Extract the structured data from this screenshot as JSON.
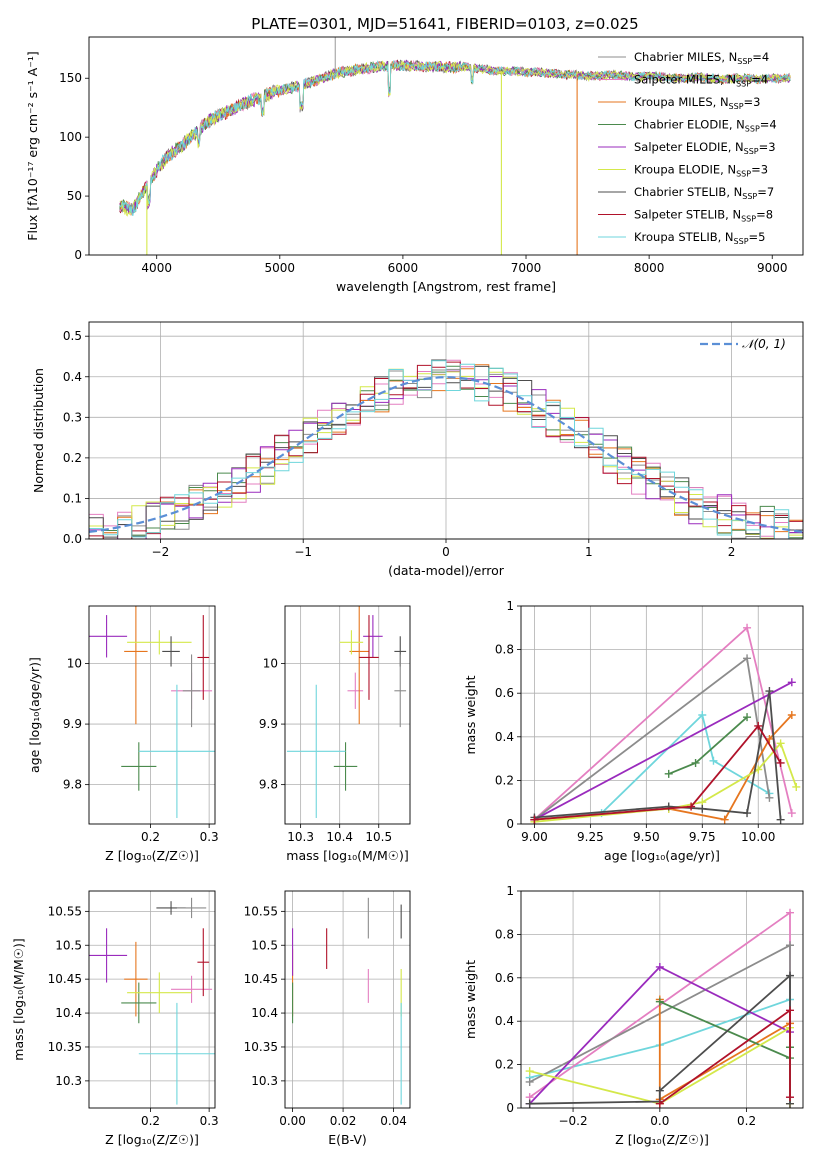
{
  "figure": {
    "title": "PLATE=0301, MJD=51641, FIBERID=0103, z=0.025",
    "legend": [
      {
        "model": "Chabrier MILES",
        "n": "4",
        "color": "#8c8c8c"
      },
      {
        "model": "Salpeter MILES",
        "n": "4",
        "color": "#e47fc1"
      },
      {
        "model": "Kroupa MILES",
        "n": "3",
        "color": "#e6761f"
      },
      {
        "model": "Chabrier ELODIE",
        "n": "4",
        "color": "#4b8a4d"
      },
      {
        "model": "Salpeter ELODIE",
        "n": "3",
        "color": "#9a2bbd"
      },
      {
        "model": "Kroupa ELODIE",
        "n": "3",
        "color": "#d4e84a"
      },
      {
        "model": "Chabrier STELIB",
        "n": "7",
        "color": "#4d4d4d"
      },
      {
        "model": "Salpeter STELIB",
        "n": "8",
        "color": "#b0122a"
      },
      {
        "model": "Kroupa STELIB",
        "n": "5",
        "color": "#6fd6dc"
      }
    ],
    "gauss_label": "𝒩(0, 1)",
    "gauss_color": "#5b8fd6"
  },
  "chart_data": [
    {
      "id": "spectrum",
      "type": "line",
      "xlabel": "wavelength [Angstrom, rest frame]",
      "ylabel": "Flux [fλ10⁻¹⁷ erg cm⁻² s⁻¹ A⁻¹]",
      "xlim": [
        3450,
        9250
      ],
      "ylim": [
        0,
        185
      ],
      "xticks": [
        4000,
        5000,
        6000,
        7000,
        8000,
        9000
      ],
      "yticks": [
        0,
        50,
        100,
        150
      ],
      "x": [
        3700,
        3800,
        3900,
        4000,
        4100,
        4200,
        4300,
        4400,
        4500,
        4600,
        4700,
        4800,
        4900,
        5000,
        5100,
        5200,
        5300,
        5400,
        5500,
        5600,
        5700,
        5800,
        5900,
        6000,
        6100,
        6200,
        6300,
        6400,
        6500,
        6600,
        6700,
        6800,
        6900,
        7000,
        7100,
        7200,
        7300,
        7400,
        7500,
        7600,
        7700,
        7800,
        7900,
        8000,
        8100,
        8200,
        8300,
        8400,
        8500,
        8600,
        8700,
        8800,
        8900,
        9000,
        9100,
        9150
      ],
      "y": [
        42,
        38,
        55,
        72,
        85,
        92,
        103,
        112,
        118,
        123,
        128,
        132,
        136,
        140,
        142,
        145,
        148,
        152,
        155,
        157,
        158,
        160,
        160,
        161,
        160,
        160,
        160,
        159,
        160,
        158,
        157,
        156,
        156,
        155,
        155,
        154,
        153,
        153,
        152,
        152,
        153,
        152,
        151,
        152,
        151,
        150,
        150,
        151,
        150,
        149,
        150,
        150,
        149,
        150,
        150,
        150
      ],
      "dropouts": [
        {
          "x": 3920,
          "color": "#d4e84a"
        },
        {
          "x": 6800,
          "color": "#d4e84a"
        },
        {
          "x": 7415,
          "color": "#e6761f"
        }
      ],
      "spike": {
        "x": 5450,
        "y": 185
      }
    },
    {
      "id": "residuals",
      "type": "histogram",
      "xlabel": "(data-model)/error",
      "ylabel": "Normed distribution",
      "xlim": [
        -2.5,
        2.5
      ],
      "ylim": [
        0,
        0.535
      ],
      "xticks": [
        -2,
        -1,
        0,
        1,
        2
      ],
      "yticks": [
        0.0,
        0.1,
        0.2,
        0.3,
        0.4,
        0.5
      ],
      "bin_width": 0.1
    },
    {
      "id": "z-age",
      "type": "scatter",
      "xlabel": "Z [log₁₀(Z/Z☉)]",
      "ylabel": "age  [log₁₀(age/yr)]",
      "xlim": [
        0.095,
        0.31
      ],
      "ylim": [
        9.735,
        10.095
      ],
      "xticks": [
        0.2,
        0.3
      ],
      "yticks": [
        9.8,
        9.9,
        10.0
      ],
      "points": [
        {
          "c": 2,
          "x": 0.27,
          "y": 9.955,
          "ex": 0.035,
          "ey": 0.03
        },
        {
          "c": 3,
          "x": 0.175,
          "y": 10.02,
          "ex": 0.02,
          "ey": 0.12
        },
        {
          "c": 4,
          "x": 0.18,
          "y": 9.83,
          "ex": 0.03,
          "ey": 0.04
        },
        {
          "c": 5,
          "x": 0.125,
          "y": 10.045,
          "ex": 0.035,
          "ey": 0.035
        },
        {
          "c": 6,
          "x": 0.215,
          "y": 10.035,
          "ex": 0.055,
          "ey": 0.02
        },
        {
          "c": 7,
          "x": 0.235,
          "y": 10.02,
          "ex": 0.015,
          "ey": 0.025
        },
        {
          "c": 8,
          "x": 0.29,
          "y": 10.01,
          "ex": 0.01,
          "ey": 0.07
        },
        {
          "c": 9,
          "x": 0.245,
          "y": 9.855,
          "ex": 0.065,
          "ey": 0.11
        },
        {
          "c": 1,
          "x": 0.27,
          "y": 9.955,
          "ex": 0.015,
          "ey": 0.06
        }
      ]
    },
    {
      "id": "mass-age",
      "type": "scatter",
      "xlabel": "mass [log₁₀(M/M☉)]",
      "ylabel": "",
      "xlim": [
        10.26,
        10.58
      ],
      "ylim": [
        9.735,
        10.095
      ],
      "xticks": [
        10.3,
        10.4,
        10.5
      ],
      "yticks": [
        9.8,
        9.9,
        10.0
      ],
      "points": [
        {
          "c": 2,
          "x": 10.44,
          "y": 9.955,
          "ex": 0.02,
          "ey": 0.03
        },
        {
          "c": 3,
          "x": 10.45,
          "y": 10.02,
          "ex": 0.025,
          "ey": 0.12
        },
        {
          "c": 4,
          "x": 10.415,
          "y": 9.83,
          "ex": 0.03,
          "ey": 0.04
        },
        {
          "c": 5,
          "x": 10.485,
          "y": 10.045,
          "ex": 0.025,
          "ey": 0.035
        },
        {
          "c": 6,
          "x": 10.43,
          "y": 10.035,
          "ex": 0.03,
          "ey": 0.02
        },
        {
          "c": 7,
          "x": 10.555,
          "y": 10.02,
          "ex": 0.015,
          "ey": 0.025
        },
        {
          "c": 8,
          "x": 10.475,
          "y": 10.01,
          "ex": 0.025,
          "ey": 0.07
        },
        {
          "c": 9,
          "x": 10.34,
          "y": 9.855,
          "ex": 0.075,
          "ey": 0.11
        },
        {
          "c": 1,
          "x": 10.555,
          "y": 9.955,
          "ex": 0.015,
          "ey": 0.06
        }
      ]
    },
    {
      "id": "age-weight",
      "type": "line",
      "xlabel": "age  [log₁₀(age/yr)]",
      "ylabel": "mass weight",
      "xlim": [
        8.94,
        10.2
      ],
      "ylim": [
        0,
        1.0
      ],
      "xticks": [
        9.0,
        9.25,
        9.5,
        9.75,
        10.0
      ],
      "xticklabels": [
        "9.00",
        "9.25",
        "9.50",
        "9.75",
        "10.00"
      ],
      "yticks": [
        0,
        0.2,
        0.4,
        0.6,
        0.8,
        1.0
      ],
      "series": [
        {
          "c": 9,
          "x": [
            9.0,
            9.3,
            9.75,
            9.8,
            10.05
          ],
          "y": [
            0.02,
            0.05,
            0.5,
            0.29,
            0.14
          ]
        },
        {
          "c": 2,
          "x": [
            9.0,
            9.95,
            10.15
          ],
          "y": [
            0.02,
            0.9,
            0.05
          ]
        },
        {
          "c": 1,
          "x": [
            9.0,
            9.95,
            10.05
          ],
          "y": [
            0.02,
            0.76,
            0.12
          ]
        },
        {
          "c": 3,
          "x": [
            9.0,
            9.6,
            9.85,
            10.05,
            10.15
          ],
          "y": [
            0.02,
            0.07,
            0.02,
            0.39,
            0.5
          ]
        },
        {
          "c": 4,
          "x": [
            9.6,
            9.72,
            9.95
          ],
          "y": [
            0.23,
            0.28,
            0.49
          ]
        },
        {
          "c": 5,
          "x": [
            9.0,
            10.15
          ],
          "y": [
            0.02,
            0.65
          ]
        },
        {
          "c": 6,
          "x": [
            9.0,
            9.6,
            9.75,
            10.0,
            10.1,
            10.17
          ],
          "y": [
            0.01,
            0.07,
            0.1,
            0.25,
            0.37,
            0.17
          ]
        },
        {
          "c": 7,
          "x": [
            9.0,
            9.6,
            9.75,
            9.95,
            10.05,
            10.1
          ],
          "y": [
            0.03,
            0.08,
            0.07,
            0.05,
            0.61,
            0.02
          ]
        },
        {
          "c": 8,
          "x": [
            9.0,
            9.7,
            10.0,
            10.1
          ],
          "y": [
            0.02,
            0.08,
            0.45,
            0.28
          ]
        }
      ]
    },
    {
      "id": "z-mass",
      "type": "scatter",
      "xlabel": "Z [log₁₀(Z/Z☉)]",
      "ylabel": "mass [log₁₀(M/M☉)]",
      "xlim": [
        0.095,
        0.31
      ],
      "ylim": [
        10.26,
        10.58
      ],
      "xticks": [
        0.2,
        0.3
      ],
      "yticks": [
        10.3,
        10.35,
        10.4,
        10.45,
        10.5,
        10.55
      ],
      "points": [
        {
          "c": 2,
          "x": 0.27,
          "y": 10.435,
          "ex": 0.035,
          "ey": 0.02
        },
        {
          "c": 3,
          "x": 0.175,
          "y": 10.45,
          "ex": 0.02,
          "ey": 0.055
        },
        {
          "c": 4,
          "x": 0.18,
          "y": 10.415,
          "ex": 0.03,
          "ey": 0.03
        },
        {
          "c": 5,
          "x": 0.125,
          "y": 10.485,
          "ex": 0.035,
          "ey": 0.04
        },
        {
          "c": 6,
          "x": 0.215,
          "y": 10.43,
          "ex": 0.055,
          "ey": 0.03
        },
        {
          "c": 7,
          "x": 0.235,
          "y": 10.555,
          "ex": 0.025,
          "ey": 0.01
        },
        {
          "c": 8,
          "x": 0.29,
          "y": 10.475,
          "ex": 0.01,
          "ey": 0.05
        },
        {
          "c": 9,
          "x": 0.245,
          "y": 10.34,
          "ex": 0.065,
          "ey": 0.075
        },
        {
          "c": 1,
          "x": 0.27,
          "y": 10.555,
          "ex": 0.025,
          "ey": 0.015
        }
      ]
    },
    {
      "id": "ebv-mass",
      "type": "scatter",
      "xlabel": "E(B-V)",
      "ylabel": "",
      "xlim": [
        -0.003,
        0.0465
      ],
      "ylim": [
        10.26,
        10.58
      ],
      "xticks": [
        0.0,
        0.02,
        0.04
      ],
      "xticklabels": [
        "0.00",
        "0.02",
        "0.04"
      ],
      "yticks": [
        10.3,
        10.35,
        10.4,
        10.45,
        10.5,
        10.55
      ],
      "points": [
        {
          "c": 2,
          "x": 0.03,
          "y": 10.44,
          "ex": 0,
          "ey": 0.025
        },
        {
          "c": 3,
          "x": 0.0,
          "y": 10.445,
          "ex": 0,
          "ey": 0.05
        },
        {
          "c": 4,
          "x": 0.0,
          "y": 10.415,
          "ex": 0,
          "ey": 0.03
        },
        {
          "c": 5,
          "x": 0.0,
          "y": 10.49,
          "ex": 0,
          "ey": 0.035
        },
        {
          "c": 6,
          "x": 0.043,
          "y": 10.43,
          "ex": 0,
          "ey": 0.035
        },
        {
          "c": 7,
          "x": 0.043,
          "y": 10.535,
          "ex": 0,
          "ey": 0.025
        },
        {
          "c": 8,
          "x": 0.0135,
          "y": 10.495,
          "ex": 0,
          "ey": 0.03
        },
        {
          "c": 9,
          "x": 0.043,
          "y": 10.34,
          "ex": 0,
          "ey": 0.075
        },
        {
          "c": 1,
          "x": 0.03,
          "y": 10.54,
          "ex": 0,
          "ey": 0.03
        }
      ]
    },
    {
      "id": "z-weight",
      "type": "line",
      "xlabel": "Z [log₁₀(Z/Z☉)]",
      "ylabel": "mass weight",
      "xlim": [
        -0.32,
        0.33
      ],
      "ylim": [
        0,
        1.0
      ],
      "xticks": [
        -0.2,
        0.0,
        0.2
      ],
      "xticklabels": [
        "−0.2",
        "0.0",
        "0.2"
      ],
      "yticks": [
        0,
        0.2,
        0.4,
        0.6,
        0.8,
        1.0
      ],
      "series": [
        {
          "c": 9,
          "x": [
            -0.3,
            0.0,
            0.3,
            0.3
          ],
          "y": [
            0.14,
            0.29,
            0.5,
            0.05
          ]
        },
        {
          "c": 2,
          "x": [
            -0.3,
            0.3,
            0.3
          ],
          "y": [
            0.05,
            0.9,
            0.05
          ]
        },
        {
          "c": 1,
          "x": [
            -0.3,
            0.3,
            0.3
          ],
          "y": [
            0.12,
            0.75,
            0.02
          ]
        },
        {
          "c": 3,
          "x": [
            0.0,
            0.0,
            0.3,
            0.3
          ],
          "y": [
            0.5,
            0.04,
            0.39,
            0.02
          ]
        },
        {
          "c": 4,
          "x": [
            0.0,
            0.3,
            0.3
          ],
          "y": [
            0.49,
            0.23,
            0.28
          ]
        },
        {
          "c": 5,
          "x": [
            -0.3,
            0.0,
            0.3
          ],
          "y": [
            0.02,
            0.65,
            0.35
          ]
        },
        {
          "c": 6,
          "x": [
            -0.3,
            0.0,
            0.3,
            0.3
          ],
          "y": [
            0.17,
            0.02,
            0.37,
            0.02
          ]
        },
        {
          "c": 7,
          "x": [
            -0.3,
            0.0,
            0.0,
            0.3,
            0.3
          ],
          "y": [
            0.02,
            0.03,
            0.08,
            0.61,
            0.02
          ]
        },
        {
          "c": 8,
          "x": [
            0.0,
            0.3,
            0.3
          ],
          "y": [
            0.02,
            0.45,
            0.05
          ]
        }
      ]
    }
  ]
}
